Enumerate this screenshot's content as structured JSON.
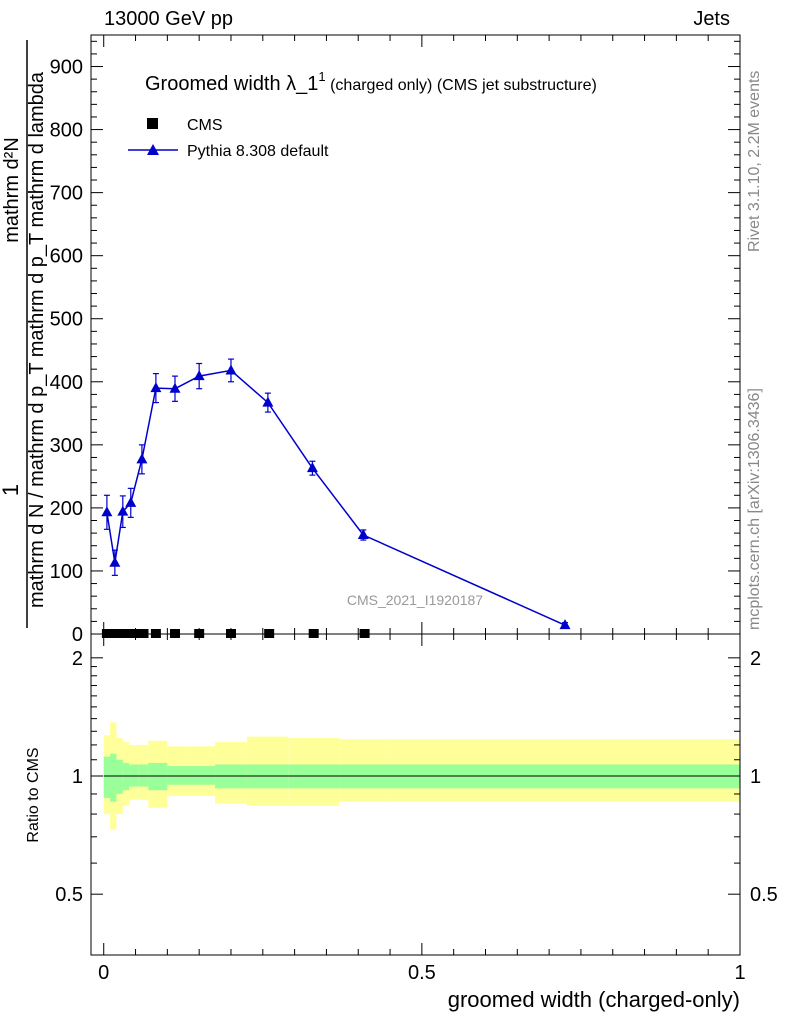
{
  "header": {
    "energy": "13000 GeV pp",
    "process": "Jets"
  },
  "side_labels": {
    "rivet": "Rivet 3.1.10,  2.2M events",
    "mcplots": "mcplots.cern.ch [arXiv:1306.3436]"
  },
  "chart_data": [
    {
      "type": "scatter",
      "panel": "main",
      "title": "Groomed width",
      "title_symbol": "λ_1",
      "title_sup": "1",
      "title_note": "(charged only) (CMS jet substructure)",
      "analysis_label": "CMS_2021_I1920187",
      "ylabel_parts": [
        "1",
        "mathrm d N / mathrm d p_T mathrm d p_T mathrm d lambda",
        "mathrm d²N"
      ],
      "xlim": [
        -0.02,
        1.0
      ],
      "ylim": [
        0,
        950
      ],
      "yticks": [
        0,
        100,
        200,
        300,
        400,
        500,
        600,
        700,
        800,
        900
      ],
      "series": [
        {
          "name": "CMS",
          "marker": "square",
          "color": "#000000",
          "x": [
            0.005,
            0.015,
            0.025,
            0.035,
            0.0475,
            0.0625,
            0.082,
            0.112,
            0.15,
            0.2,
            0.26,
            0.33,
            0.41
          ],
          "y": [
            0,
            0,
            0,
            0,
            0,
            0,
            0,
            0,
            0,
            0,
            0,
            0,
            0
          ]
        },
        {
          "name": "Pythia 8.308 default",
          "marker": "triangle",
          "color": "#0000cc",
          "x": [
            0.005,
            0.0175,
            0.03,
            0.0425,
            0.06,
            0.082,
            0.112,
            0.15,
            0.2,
            0.258,
            0.328,
            0.408,
            0.725
          ],
          "y": [
            193,
            113,
            194,
            208,
            277,
            390,
            389,
            409,
            418,
            367,
            263,
            157,
            14
          ],
          "yerr": [
            27,
            20,
            25,
            23,
            23,
            23,
            20,
            20,
            18,
            15,
            11,
            8,
            4
          ]
        }
      ]
    },
    {
      "type": "area",
      "panel": "ratio",
      "ylabel": "Ratio to CMS",
      "xlabel": "groomed width (charged-only)",
      "xlim": [
        -0.02,
        1.0
      ],
      "ylim": [
        0.35,
        2.3
      ],
      "yticks": [
        0.5,
        1,
        2
      ],
      "ytick_labels": [
        "0.5",
        "1",
        "2"
      ],
      "xticks": [
        0,
        0.5,
        1
      ],
      "xtick_labels": [
        "0",
        "0.5",
        "1"
      ],
      "reference": 1.0,
      "bins": [
        0.0,
        0.01,
        0.02,
        0.03,
        0.04,
        0.055,
        0.07,
        0.1,
        0.13,
        0.175,
        0.225,
        0.29,
        0.37,
        0.45,
        1.0
      ],
      "band_inner": {
        "color": "#99ff99",
        "low": [
          0.88,
          0.86,
          0.9,
          0.92,
          0.94,
          0.94,
          0.92,
          0.95,
          0.95,
          0.93,
          0.93,
          0.93,
          0.93,
          0.93
        ],
        "high": [
          1.12,
          1.14,
          1.1,
          1.08,
          1.07,
          1.07,
          1.08,
          1.06,
          1.06,
          1.07,
          1.07,
          1.07,
          1.07,
          1.07
        ]
      },
      "band_outer": {
        "color": "#ffff99",
        "low": [
          0.8,
          0.73,
          0.8,
          0.84,
          0.87,
          0.87,
          0.83,
          0.89,
          0.89,
          0.85,
          0.84,
          0.84,
          0.86,
          0.86
        ],
        "high": [
          1.27,
          1.37,
          1.25,
          1.22,
          1.2,
          1.2,
          1.23,
          1.19,
          1.19,
          1.22,
          1.26,
          1.25,
          1.24,
          1.24
        ]
      }
    }
  ]
}
